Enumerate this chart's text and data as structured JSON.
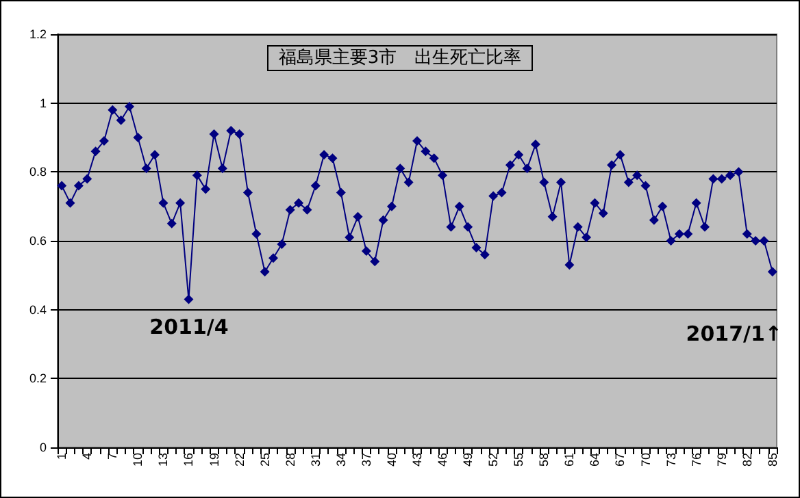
{
  "chart_data": {
    "type": "line",
    "title": "福島県主要3市　出生死亡比率",
    "categories": [
      "1",
      null,
      null,
      "4",
      null,
      null,
      "7",
      null,
      null,
      "10",
      null,
      null,
      "13",
      null,
      null,
      "16",
      null,
      null,
      "19",
      null,
      null,
      "22",
      null,
      null,
      "25",
      null,
      null,
      "28",
      null,
      null,
      "31",
      null,
      null,
      "34",
      null,
      null,
      "37",
      null,
      null,
      "40",
      null,
      null,
      "43",
      null,
      null,
      "46",
      null,
      null,
      "49",
      null,
      null,
      "52",
      null,
      null,
      "55",
      null,
      null,
      "58",
      null,
      null,
      "61",
      null,
      null,
      "64",
      null,
      null,
      "67",
      null,
      null,
      "70",
      null,
      null,
      "73",
      null,
      null,
      "76",
      null,
      null,
      "79",
      null,
      null,
      "82",
      null,
      null,
      "85"
    ],
    "series": [
      {
        "color": "#000080",
        "values": [
          0.76,
          0.71,
          0.76,
          0.78,
          0.86,
          0.89,
          0.98,
          0.95,
          0.99,
          0.9,
          0.81,
          0.85,
          0.71,
          0.65,
          0.71,
          0.43,
          0.79,
          0.75,
          0.91,
          0.81,
          0.92,
          0.91,
          0.74,
          0.62,
          0.51,
          0.55,
          0.59,
          0.69,
          0.71,
          0.69,
          0.76,
          0.85,
          0.84,
          0.74,
          0.61,
          0.67,
          0.57,
          0.54,
          0.66,
          0.7,
          0.81,
          0.77,
          0.89,
          0.86,
          0.84,
          0.79,
          0.64,
          0.7,
          0.64,
          0.58,
          0.56,
          0.73,
          0.74,
          0.82,
          0.85,
          0.81,
          0.88,
          0.77,
          0.67,
          0.77,
          0.53,
          0.64,
          0.61,
          0.71,
          0.68,
          0.82,
          0.85,
          0.77,
          0.79,
          0.76,
          0.66,
          0.7,
          0.6,
          0.62,
          0.62,
          0.71,
          0.64,
          0.78,
          0.78,
          0.79,
          0.8,
          0.62,
          0.6,
          0.6,
          0.51
        ]
      }
    ],
    "ylim": [
      0,
      1.2
    ],
    "yticks": [
      0,
      0.2,
      0.4,
      0.6,
      0.8,
      1,
      1.2
    ],
    "grid": "y",
    "marker": "diamond",
    "line_style": "solid",
    "annotations": [
      "2011/4",
      "2017/1↑"
    ]
  }
}
